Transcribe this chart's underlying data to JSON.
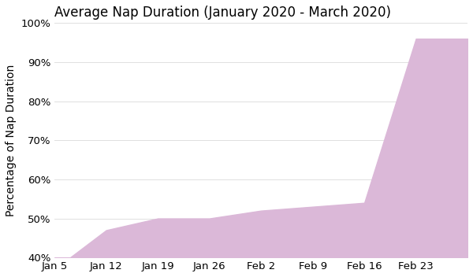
{
  "title": "Average Nap Duration (January 2020 - March 2020)",
  "ylabel": "Percentage of Nap Duration",
  "x_labels": [
    "Jan 5",
    "Jan 12",
    "Jan 19",
    "Jan 26",
    "Feb 2",
    "Feb 9",
    "Feb 16",
    "Feb 23"
  ],
  "x_values": [
    0,
    7,
    14,
    21,
    28,
    35,
    42,
    49
  ],
  "y_values": [
    37,
    47,
    50,
    50,
    52,
    53,
    54,
    96
  ],
  "ylim": [
    40,
    100
  ],
  "xlim_max": 56,
  "fill_color": "#dbb8d8",
  "line_color": "#dbb8d8",
  "background_color": "#ffffff",
  "grid_color": "#e0e0e0",
  "title_fontsize": 12,
  "label_fontsize": 10,
  "tick_fontsize": 9.5
}
